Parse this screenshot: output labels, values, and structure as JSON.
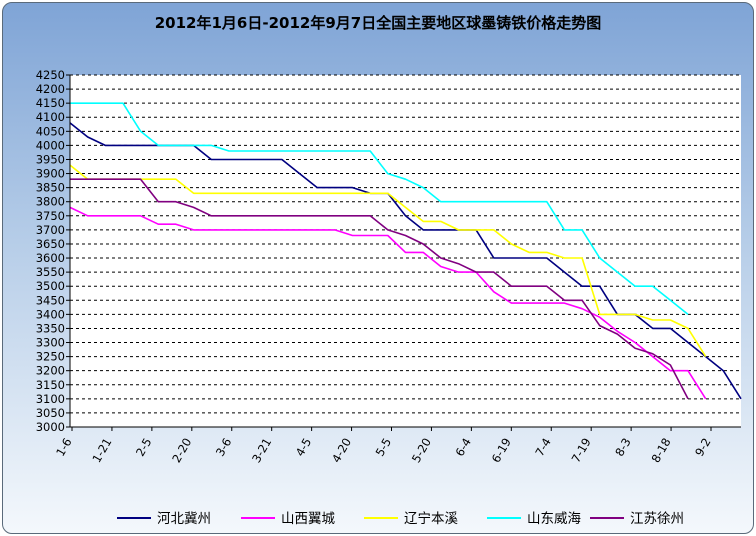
{
  "chart_data": {
    "type": "line",
    "title": "2012年1月6日-2012年9月7日全国主要地区球墨铸铁价格走势图",
    "xlabel": "",
    "ylabel": "",
    "ylim": [
      3000,
      4250
    ],
    "ytick_step": 50,
    "x_tick_labels": [
      "1-6",
      "1-21",
      "2-5",
      "2-20",
      "3-6",
      "3-21",
      "4-5",
      "4-20",
      "5-5",
      "5-20",
      "6-4",
      "6-19",
      "7-4",
      "7-19",
      "8-3",
      "8-18",
      "9-2"
    ],
    "grid": "horizontal-dashed",
    "legend_placement": "bottom",
    "colors": {
      "河北冀州": "#000080",
      "山西翼城": "#ff00ff",
      "辽宁本溪": "#ffff00",
      "山东威海": "#00ffff",
      "江苏徐州": "#800080",
      "plot_background": "#ffffff",
      "grid": "#000000"
    },
    "x_index_range": [
      0,
      34
    ],
    "series": [
      {
        "name": "河北冀州",
        "points": [
          [
            0,
            4080
          ],
          [
            1,
            4030
          ],
          [
            2,
            4000
          ],
          [
            3,
            4000
          ],
          [
            4,
            4000
          ],
          [
            5,
            4000
          ],
          [
            6,
            4000
          ],
          [
            7,
            4000
          ],
          [
            8,
            3950
          ],
          [
            9,
            3950
          ],
          [
            10,
            3950
          ],
          [
            11,
            3950
          ],
          [
            12,
            3950
          ],
          [
            13,
            3900
          ],
          [
            14,
            3850
          ],
          [
            15,
            3850
          ],
          [
            16,
            3850
          ],
          [
            17,
            3830
          ],
          [
            18,
            3830
          ],
          [
            19,
            3750
          ],
          [
            20,
            3700
          ],
          [
            21,
            3700
          ],
          [
            22,
            3700
          ],
          [
            23,
            3700
          ],
          [
            24,
            3600
          ],
          [
            25,
            3600
          ],
          [
            26,
            3600
          ],
          [
            27,
            3600
          ],
          [
            28,
            3550
          ],
          [
            29,
            3500
          ],
          [
            30,
            3500
          ],
          [
            31,
            3400
          ],
          [
            32,
            3400
          ],
          [
            33,
            3350
          ],
          [
            34,
            3350
          ],
          [
            35,
            3300
          ],
          [
            36,
            3250
          ],
          [
            37,
            3200
          ],
          [
            38,
            3100
          ]
        ]
      },
      {
        "name": "山西翼城",
        "points": [
          [
            0,
            3780
          ],
          [
            1,
            3750
          ],
          [
            2,
            3750
          ],
          [
            3,
            3750
          ],
          [
            4,
            3750
          ],
          [
            5,
            3720
          ],
          [
            6,
            3720
          ],
          [
            7,
            3700
          ],
          [
            8,
            3700
          ],
          [
            9,
            3700
          ],
          [
            10,
            3700
          ],
          [
            11,
            3700
          ],
          [
            12,
            3700
          ],
          [
            13,
            3700
          ],
          [
            14,
            3700
          ],
          [
            15,
            3700
          ],
          [
            16,
            3680
          ],
          [
            17,
            3680
          ],
          [
            18,
            3680
          ],
          [
            19,
            3620
          ],
          [
            20,
            3620
          ],
          [
            21,
            3570
          ],
          [
            22,
            3550
          ],
          [
            23,
            3550
          ],
          [
            24,
            3480
          ],
          [
            25,
            3440
          ],
          [
            26,
            3440
          ],
          [
            27,
            3440
          ],
          [
            28,
            3440
          ],
          [
            29,
            3420
          ],
          [
            30,
            3390
          ],
          [
            31,
            3340
          ],
          [
            32,
            3300
          ],
          [
            33,
            3250
          ],
          [
            34,
            3200
          ],
          [
            35,
            3200
          ],
          [
            36,
            3100
          ]
        ]
      },
      {
        "name": "辽宁本溪",
        "points": [
          [
            0,
            3930
          ],
          [
            1,
            3880
          ],
          [
            2,
            3880
          ],
          [
            3,
            3880
          ],
          [
            4,
            3880
          ],
          [
            5,
            3880
          ],
          [
            6,
            3880
          ],
          [
            7,
            3830
          ],
          [
            8,
            3830
          ],
          [
            9,
            3830
          ],
          [
            10,
            3830
          ],
          [
            11,
            3830
          ],
          [
            12,
            3830
          ],
          [
            13,
            3830
          ],
          [
            14,
            3830
          ],
          [
            15,
            3830
          ],
          [
            16,
            3830
          ],
          [
            17,
            3830
          ],
          [
            18,
            3830
          ],
          [
            19,
            3780
          ],
          [
            20,
            3730
          ],
          [
            21,
            3730
          ],
          [
            22,
            3700
          ],
          [
            23,
            3700
          ],
          [
            24,
            3700
          ],
          [
            25,
            3650
          ],
          [
            26,
            3620
          ],
          [
            27,
            3620
          ],
          [
            28,
            3600
          ],
          [
            29,
            3600
          ],
          [
            30,
            3400
          ],
          [
            31,
            3400
          ],
          [
            32,
            3400
          ],
          [
            33,
            3380
          ],
          [
            34,
            3380
          ],
          [
            35,
            3350
          ],
          [
            36,
            3250
          ]
        ]
      },
      {
        "name": "山东威海",
        "points": [
          [
            0,
            4150
          ],
          [
            1,
            4150
          ],
          [
            2,
            4150
          ],
          [
            3,
            4150
          ],
          [
            4,
            4050
          ],
          [
            5,
            4000
          ],
          [
            6,
            4000
          ],
          [
            7,
            4000
          ],
          [
            8,
            4000
          ],
          [
            9,
            3980
          ],
          [
            10,
            3980
          ],
          [
            11,
            3980
          ],
          [
            12,
            3980
          ],
          [
            13,
            3980
          ],
          [
            14,
            3980
          ],
          [
            15,
            3980
          ],
          [
            16,
            3980
          ],
          [
            17,
            3980
          ],
          [
            18,
            3900
          ],
          [
            19,
            3880
          ],
          [
            20,
            3850
          ],
          [
            21,
            3800
          ],
          [
            22,
            3800
          ],
          [
            23,
            3800
          ],
          [
            24,
            3800
          ],
          [
            25,
            3800
          ],
          [
            26,
            3800
          ],
          [
            27,
            3800
          ],
          [
            28,
            3700
          ],
          [
            29,
            3700
          ],
          [
            30,
            3600
          ],
          [
            31,
            3550
          ],
          [
            32,
            3500
          ],
          [
            33,
            3500
          ],
          [
            34,
            3450
          ],
          [
            35,
            3400
          ]
        ]
      },
      {
        "name": "江苏徐州",
        "points": [
          [
            0,
            3880
          ],
          [
            1,
            3880
          ],
          [
            2,
            3880
          ],
          [
            3,
            3880
          ],
          [
            4,
            3880
          ],
          [
            5,
            3800
          ],
          [
            6,
            3800
          ],
          [
            7,
            3780
          ],
          [
            8,
            3750
          ],
          [
            9,
            3750
          ],
          [
            10,
            3750
          ],
          [
            11,
            3750
          ],
          [
            12,
            3750
          ],
          [
            13,
            3750
          ],
          [
            14,
            3750
          ],
          [
            15,
            3750
          ],
          [
            16,
            3750
          ],
          [
            17,
            3750
          ],
          [
            18,
            3700
          ],
          [
            19,
            3680
          ],
          [
            20,
            3650
          ],
          [
            21,
            3600
          ],
          [
            22,
            3580
          ],
          [
            23,
            3550
          ],
          [
            24,
            3550
          ],
          [
            25,
            3500
          ],
          [
            26,
            3500
          ],
          [
            27,
            3500
          ],
          [
            28,
            3450
          ],
          [
            29,
            3450
          ],
          [
            30,
            3360
          ],
          [
            31,
            3330
          ],
          [
            32,
            3280
          ],
          [
            33,
            3260
          ],
          [
            34,
            3220
          ],
          [
            35,
            3100
          ]
        ]
      }
    ]
  }
}
